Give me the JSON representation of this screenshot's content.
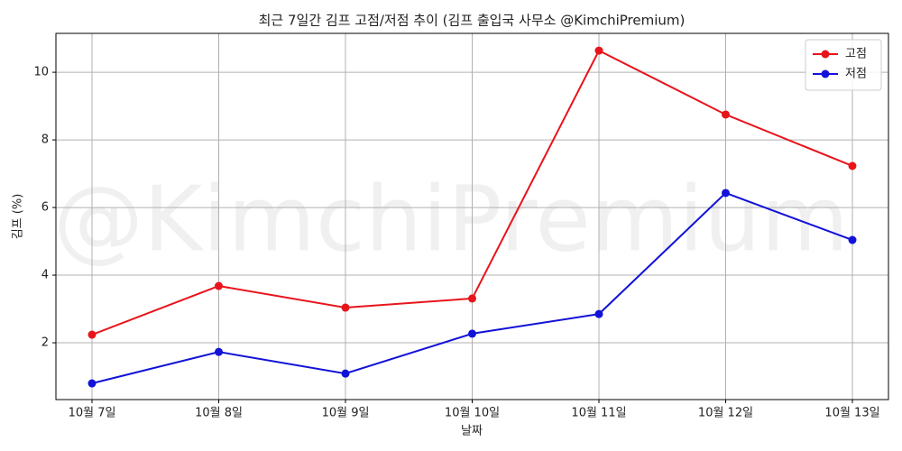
{
  "chart_data": {
    "type": "line",
    "title": "최근 7일간 김프 고점/저점 추이 (김프 출입국 사무소 @KimchiPremium)",
    "watermark": "@KimchiPremium",
    "x_label": "날짜",
    "y_label": "김프 (%)",
    "categories": [
      "10월 7일",
      "10월 8일",
      "10월 9일",
      "10월 10일",
      "10월 11일",
      "10월 12일",
      "10월 13일"
    ],
    "series": [
      {
        "name": "고점",
        "color": "#e8141b",
        "values": [
          2.24,
          3.68,
          3.04,
          3.31,
          10.64,
          8.75,
          7.23
        ]
      },
      {
        "name": "저점",
        "color": "#1212d8",
        "values": [
          0.8,
          1.73,
          1.09,
          2.27,
          2.85,
          6.43,
          5.04
        ]
      }
    ],
    "ylim": [
      0.32,
      11.15
    ],
    "yticks": [
      2,
      4,
      6,
      8,
      10
    ],
    "grid": true,
    "legend": "upper right"
  }
}
